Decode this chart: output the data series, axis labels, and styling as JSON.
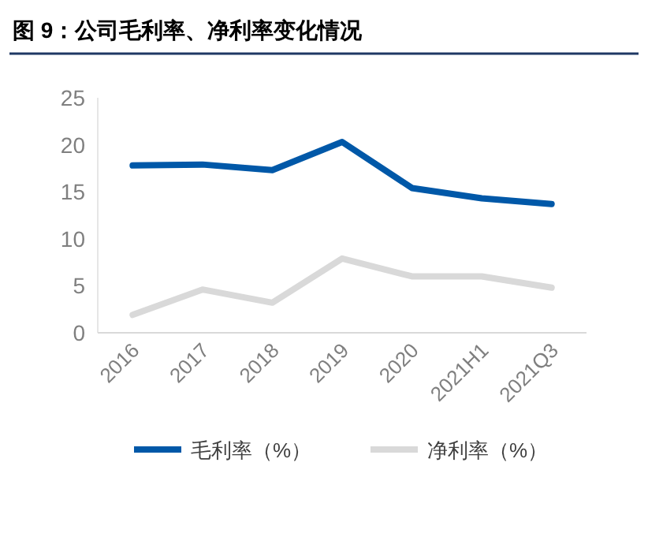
{
  "chart_data": {
    "type": "line",
    "title": "图 9：公司毛利率、净利率变化情况",
    "categories": [
      "2016",
      "2017",
      "2018",
      "2019",
      "2020",
      "2021H1",
      "2021Q3"
    ],
    "series": [
      {
        "name": "毛利率（%）",
        "color": "#0058a8",
        "values": [
          17.8,
          17.9,
          17.3,
          20.3,
          15.4,
          14.3,
          13.7
        ]
      },
      {
        "name": "净利率（%）",
        "color": "#d9d9d9",
        "values": [
          1.9,
          4.6,
          3.2,
          7.9,
          6.0,
          6.0,
          4.8
        ]
      }
    ],
    "ylim": [
      0,
      25
    ],
    "yticks": [
      0,
      5,
      10,
      15,
      20,
      25
    ],
    "legend": "bottom"
  }
}
